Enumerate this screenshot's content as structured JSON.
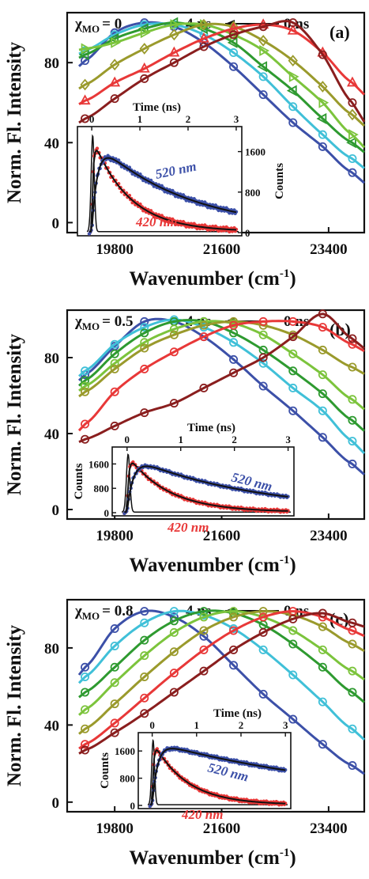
{
  "figure": {
    "y_axis_title": "Norm. Fl. Intensity",
    "x_axis_title_main": "Wavenumber (cm",
    "x_axis_title_sup": "-1",
    "x_axis_title_close": ")",
    "chi_symbol": "χ",
    "chi_subscript": "MO",
    "time_from": "4 ns",
    "time_to": "0 ns",
    "series_colors": [
      "#3c50a8",
      "#40c0d8",
      "#2e9a30",
      "#7cc43c",
      "#9a9a2c",
      "#e83838",
      "#8a1e1e"
    ]
  },
  "chart_data": [
    {
      "type": "line",
      "panel_label": "(a)",
      "chi_value": "= 0",
      "xlim": [
        19000,
        24000
      ],
      "ylim": [
        -5,
        105
      ],
      "x_ticks": [
        19800,
        21600,
        23400
      ],
      "y_ticks": [
        0,
        40,
        80
      ],
      "xlabel": "Wavenumber (cm-1)",
      "ylabel": "Norm. Fl. Intensity",
      "series": [
        {
          "color": "#3c50a8",
          "peak": 20300,
          "width": 1700,
          "points": [
            [
              19300,
              81
            ],
            [
              19800,
              95
            ],
            [
              20300,
              100
            ],
            [
              20800,
              98
            ],
            [
              21300,
              90
            ],
            [
              21800,
              78
            ],
            [
              22300,
              64
            ],
            [
              22800,
              50
            ],
            [
              23300,
              38
            ],
            [
              23800,
              25
            ]
          ]
        },
        {
          "color": "#40c0d8",
          "peak": 20600,
          "width": 1750,
          "points": [
            [
              19300,
              86
            ],
            [
              19800,
              94
            ],
            [
              20300,
              99
            ],
            [
              20800,
              99
            ],
            [
              21300,
              94
            ],
            [
              21800,
              85
            ],
            [
              22300,
              73
            ],
            [
              22800,
              58
            ],
            [
              23300,
              44
            ],
            [
              23800,
              32
            ]
          ]
        },
        {
          "color": "#2e9a30",
          "peak": 20900,
          "width": 1800,
          "points": [
            [
              19300,
              84
            ],
            [
              19800,
              92
            ],
            [
              20300,
              97
            ],
            [
              20800,
              100
            ],
            [
              21300,
              97
            ],
            [
              21800,
              90
            ],
            [
              22300,
              78
            ],
            [
              22800,
              66
            ],
            [
              23300,
              52
            ],
            [
              23800,
              40
            ]
          ]
        },
        {
          "color": "#7cc43c",
          "peak": 21200,
          "width": 1850,
          "points": [
            [
              19300,
              87
            ],
            [
              19800,
              90
            ],
            [
              20300,
              95
            ],
            [
              20800,
              99
            ],
            [
              21300,
              99
            ],
            [
              21800,
              94
            ],
            [
              22300,
              86
            ],
            [
              22800,
              73
            ],
            [
              23300,
              60
            ],
            [
              23800,
              44
            ]
          ]
        },
        {
          "color": "#9a9a2c",
          "peak": 21500,
          "width": 1900,
          "points": [
            [
              19300,
              69
            ],
            [
              19800,
              79
            ],
            [
              20300,
              87
            ],
            [
              20800,
              94
            ],
            [
              21300,
              99
            ],
            [
              21800,
              98
            ],
            [
              22300,
              91
            ],
            [
              22800,
              81
            ],
            [
              23300,
              68
            ],
            [
              23800,
              54
            ]
          ]
        },
        {
          "color": "#e83838",
          "peak": 22200,
          "width": 2000,
          "points": [
            [
              19300,
              61
            ],
            [
              19800,
              70
            ],
            [
              20300,
              77
            ],
            [
              20800,
              85
            ],
            [
              21300,
              92
            ],
            [
              21800,
              97
            ],
            [
              22300,
              99
            ],
            [
              22800,
              96
            ],
            [
              23300,
              85
            ],
            [
              23800,
              70
            ]
          ]
        },
        {
          "color": "#8a1e1e",
          "peak": 22700,
          "width": 1900,
          "points": [
            [
              19300,
              52
            ],
            [
              19800,
              62
            ],
            [
              20300,
              72
            ],
            [
              20800,
              80
            ],
            [
              21300,
              88
            ],
            [
              21800,
              94
            ],
            [
              22300,
              98
            ],
            [
              22800,
              100
            ],
            [
              23300,
              84
            ],
            [
              23800,
              60
            ]
          ]
        }
      ],
      "inset": {
        "xlabel": "Time (ns)",
        "ylabel": "Counts",
        "x_ticks": [
          0,
          1,
          2,
          3
        ],
        "y_ticks": [
          0,
          800,
          1600
        ],
        "ylim": [
          0,
          2000
        ],
        "tau_blue": 1.9,
        "label_blue": "520 nm",
        "label_red": "420 nm"
      }
    },
    {
      "type": "line",
      "panel_label": "(b)",
      "chi_value": "= 0.5",
      "xlim": [
        19000,
        24000
      ],
      "ylim": [
        -5,
        105
      ],
      "x_ticks": [
        19800,
        21600,
        23400
      ],
      "y_ticks": [
        0,
        40,
        80
      ],
      "xlabel": "Wavenumber (cm-1)",
      "ylabel": "Norm. Fl. Intensity",
      "series": [
        {
          "color": "#3c50a8",
          "peak": 20400,
          "width": 1750,
          "points": [
            [
              19300,
              71
            ],
            [
              19800,
              86
            ],
            [
              20300,
              99
            ],
            [
              20800,
              99
            ],
            [
              21300,
              91
            ],
            [
              21800,
              79
            ],
            [
              22300,
              65
            ],
            [
              22800,
              52
            ],
            [
              23300,
              38
            ],
            [
              23800,
              24
            ]
          ]
        },
        {
          "color": "#40c0d8",
          "peak": 20900,
          "width": 1850,
          "points": [
            [
              19300,
              73
            ],
            [
              19800,
              87
            ],
            [
              20300,
              96
            ],
            [
              20800,
              100
            ],
            [
              21300,
              96
            ],
            [
              21800,
              88
            ],
            [
              22300,
              77
            ],
            [
              22800,
              64
            ],
            [
              23300,
              52
            ],
            [
              23800,
              36
            ]
          ]
        },
        {
          "color": "#2e9a30",
          "peak": 21200,
          "width": 1900,
          "points": [
            [
              19300,
              68
            ],
            [
              19800,
              82
            ],
            [
              20300,
              93
            ],
            [
              20800,
              99
            ],
            [
              21300,
              99
            ],
            [
              21800,
              93
            ],
            [
              22300,
              84
            ],
            [
              22800,
              73
            ],
            [
              23300,
              61
            ],
            [
              23800,
              47
            ]
          ]
        },
        {
          "color": "#7cc43c",
          "peak": 21600,
          "width": 1950,
          "points": [
            [
              19300,
              65
            ],
            [
              19800,
              77
            ],
            [
              20300,
              88
            ],
            [
              20800,
              95
            ],
            [
              21300,
              99
            ],
            [
              21800,
              98
            ],
            [
              22300,
              92
            ],
            [
              22800,
              82
            ],
            [
              23300,
              71
            ],
            [
              23800,
              58
            ]
          ]
        },
        {
          "color": "#9a9a2c",
          "peak": 22100,
          "width": 2000,
          "points": [
            [
              19300,
              62
            ],
            [
              19800,
              74
            ],
            [
              20300,
              85
            ],
            [
              20800,
              92
            ],
            [
              21300,
              97
            ],
            [
              21800,
              99
            ],
            [
              22300,
              97
            ],
            [
              22800,
              92
            ],
            [
              23300,
              84
            ],
            [
              23800,
              75
            ]
          ]
        },
        {
          "color": "#e83838",
          "peak": 22800,
          "width": 2100,
          "points": [
            [
              19300,
              45
            ],
            [
              19800,
              62
            ],
            [
              20300,
              74
            ],
            [
              20800,
              83
            ],
            [
              21300,
              91
            ],
            [
              21800,
              97
            ],
            [
              22300,
              99
            ],
            [
              22800,
              99
            ],
            [
              23300,
              96
            ],
            [
              23800,
              87
            ]
          ]
        },
        {
          "color": "#8a1e1e",
          "peak": 23500,
          "width": 2600,
          "points": [
            [
              19300,
              37
            ],
            [
              19800,
              44
            ],
            [
              20300,
              51
            ],
            [
              20800,
              56
            ],
            [
              21300,
              64
            ],
            [
              21800,
              72
            ],
            [
              22300,
              80
            ],
            [
              22800,
              91
            ],
            [
              23300,
              103
            ],
            [
              23800,
              90
            ]
          ]
        }
      ],
      "inset": {
        "xlabel": "Time (ns)",
        "ylabel": "Counts",
        "x_ticks": [
          0,
          1,
          2,
          3
        ],
        "y_ticks": [
          0,
          800,
          1600
        ],
        "ylim": [
          0,
          2000
        ],
        "tau_blue": 2.3,
        "label_blue": "520 nm",
        "label_red": "420 nm"
      }
    },
    {
      "type": "line",
      "panel_label": "(c)",
      "chi_value": "= 0.8",
      "xlim": [
        19000,
        24000
      ],
      "ylim": [
        -5,
        105
      ],
      "x_ticks": [
        19800,
        21600,
        23400
      ],
      "y_ticks": [
        0,
        40,
        80
      ],
      "xlabel": "Wavenumber (cm-1)",
      "ylabel": "Norm. Fl. Intensity",
      "series": [
        {
          "color": "#3c50a8",
          "peak": 20300,
          "width": 1700,
          "points": [
            [
              19300,
              70
            ],
            [
              19800,
              90
            ],
            [
              20300,
              99
            ],
            [
              20800,
              96
            ],
            [
              21300,
              86
            ],
            [
              21800,
              71
            ],
            [
              22300,
              56
            ],
            [
              22800,
              43
            ],
            [
              23300,
              30
            ],
            [
              23800,
              19
            ]
          ]
        },
        {
          "color": "#40c0d8",
          "peak": 20900,
          "width": 1850,
          "points": [
            [
              19300,
              65
            ],
            [
              19800,
              81
            ],
            [
              20300,
              93
            ],
            [
              20800,
              99
            ],
            [
              21300,
              97
            ],
            [
              21800,
              90
            ],
            [
              22300,
              79
            ],
            [
              22800,
              66
            ],
            [
              23300,
              52
            ],
            [
              23800,
              38
            ]
          ]
        },
        {
          "color": "#2e9a30",
          "peak": 21400,
          "width": 1950,
          "points": [
            [
              19300,
              57
            ],
            [
              19800,
              70
            ],
            [
              20300,
              84
            ],
            [
              20800,
              94
            ],
            [
              21300,
              99
            ],
            [
              21800,
              98
            ],
            [
              22300,
              92
            ],
            [
              22800,
              82
            ],
            [
              23300,
              70
            ],
            [
              23800,
              57
            ]
          ]
        },
        {
          "color": "#7cc43c",
          "peak": 21800,
          "width": 2000,
          "points": [
            [
              19300,
              48
            ],
            [
              19800,
              62
            ],
            [
              20300,
              76
            ],
            [
              20800,
              88
            ],
            [
              21300,
              96
            ],
            [
              21800,
              99
            ],
            [
              22300,
              96
            ],
            [
              22800,
              89
            ],
            [
              23300,
              79
            ],
            [
              23800,
              68
            ]
          ]
        },
        {
          "color": "#9a9a2c",
          "peak": 22300,
          "width": 2100,
          "points": [
            [
              19300,
              38
            ],
            [
              19800,
              51
            ],
            [
              20300,
              65
            ],
            [
              20800,
              78
            ],
            [
              21300,
              89
            ],
            [
              21800,
              96
            ],
            [
              22300,
              99
            ],
            [
              22800,
              97
            ],
            [
              23300,
              91
            ],
            [
              23800,
              82
            ]
          ]
        },
        {
          "color": "#e83838",
          "peak": 22900,
          "width": 2200,
          "points": [
            [
              19300,
              30
            ],
            [
              19800,
              41
            ],
            [
              20300,
              54
            ],
            [
              20800,
              67
            ],
            [
              21300,
              79
            ],
            [
              21800,
              89
            ],
            [
              22300,
              96
            ],
            [
              22800,
              99
            ],
            [
              23300,
              96
            ],
            [
              23800,
              89
            ]
          ]
        },
        {
          "color": "#8a1e1e",
          "peak": 23300,
          "width": 2200,
          "points": [
            [
              19300,
              27
            ],
            [
              19800,
              36
            ],
            [
              20300,
              46
            ],
            [
              20800,
              57
            ],
            [
              21300,
              68
            ],
            [
              21800,
              79
            ],
            [
              22300,
              88
            ],
            [
              22800,
              95
            ],
            [
              23300,
              98
            ],
            [
              23800,
              93
            ]
          ]
        }
      ],
      "inset": {
        "xlabel": "Time (ns)",
        "ylabel": "Counts",
        "x_ticks": [
          0,
          1,
          2,
          3
        ],
        "y_ticks": [
          0,
          800,
          1600
        ],
        "ylim": [
          0,
          2000
        ],
        "tau_blue": 5.0,
        "label_blue": "520 nm",
        "label_red": "420 nm"
      }
    }
  ]
}
